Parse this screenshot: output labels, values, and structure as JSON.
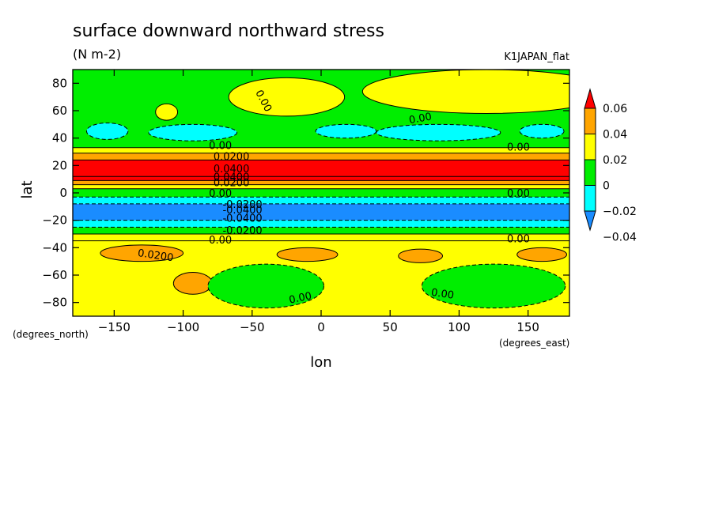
{
  "chart_data": {
    "type": "heatmap",
    "title": "surface downward northward stress",
    "units": "(N m-2)",
    "dataset": "K1JAPAN_flat",
    "xlabel": "lon",
    "ylabel": "lat",
    "x_units": "(degrees_east)",
    "y_units": "(degrees_north)",
    "xlim": [
      -180,
      180
    ],
    "ylim": [
      -90,
      90
    ],
    "x_ticks": [
      -150,
      -100,
      -50,
      0,
      50,
      100,
      150
    ],
    "x_tick_labels": [
      "−150",
      "−100",
      "−50",
      "0",
      "50",
      "100",
      "150"
    ],
    "y_ticks": [
      -80,
      -60,
      -40,
      -20,
      0,
      20,
      40,
      60,
      80
    ],
    "y_tick_labels": [
      "−80",
      "−60",
      "−40",
      "−20",
      "0",
      "20",
      "40",
      "60",
      "80"
    ],
    "zonal_bands": [
      {
        "lat_from": -90,
        "lat_to": -35,
        "value": 0.01
      },
      {
        "lat_from": -35,
        "lat_to": -30,
        "value": 0.01
      },
      {
        "lat_from": -30,
        "lat_to": -25,
        "value": -0.01
      },
      {
        "lat_from": -25,
        "lat_to": -20,
        "value": -0.03
      },
      {
        "lat_from": -20,
        "lat_to": -8,
        "value": -0.05
      },
      {
        "lat_from": -8,
        "lat_to": -3,
        "value": -0.03
      },
      {
        "lat_from": -3,
        "lat_to": 3,
        "value": -0.01
      },
      {
        "lat_from": 3,
        "lat_to": 6,
        "value": 0.01
      },
      {
        "lat_from": 6,
        "lat_to": 9,
        "value": 0.03
      },
      {
        "lat_from": 9,
        "lat_to": 12,
        "value": 0.05
      },
      {
        "lat_from": 12,
        "lat_to": 24,
        "value": 0.05
      },
      {
        "lat_from": 24,
        "lat_to": 29,
        "value": 0.03
      },
      {
        "lat_from": 29,
        "lat_to": 33,
        "value": 0.01
      },
      {
        "lat_from": 33,
        "lat_to": 90,
        "value": -0.01
      }
    ],
    "regions": [
      {
        "kind": "ellipse",
        "lon": -112,
        "lat": 59,
        "rlon": 8,
        "rlat": 6,
        "value": 0.01
      },
      {
        "kind": "ellipse",
        "lon": -25,
        "lat": 70,
        "rlon": 42,
        "rlat": 14,
        "value": 0.01
      },
      {
        "kind": "ellipse",
        "lon": 120,
        "lat": 74,
        "rlon": 90,
        "rlat": 16,
        "value": 0.01
      },
      {
        "kind": "ellipse",
        "lon": -155,
        "lat": 45,
        "rlon": 15,
        "rlat": 6,
        "value": -0.03
      },
      {
        "kind": "ellipse",
        "lon": -93,
        "lat": 44,
        "rlon": 32,
        "rlat": 6,
        "value": -0.03
      },
      {
        "kind": "ellipse",
        "lon": 18,
        "lat": 45,
        "rlon": 22,
        "rlat": 5,
        "value": -0.03
      },
      {
        "kind": "ellipse",
        "lon": 85,
        "lat": 44,
        "rlon": 45,
        "rlat": 6,
        "value": -0.03
      },
      {
        "kind": "ellipse",
        "lon": 160,
        "lat": 45,
        "rlon": 16,
        "rlat": 5,
        "value": -0.03
      },
      {
        "kind": "ellipse",
        "lon": -130,
        "lat": -44,
        "rlon": 30,
        "rlat": 6,
        "value": 0.03
      },
      {
        "kind": "ellipse",
        "lon": -10,
        "lat": -45,
        "rlon": 22,
        "rlat": 5,
        "value": 0.03
      },
      {
        "kind": "ellipse",
        "lon": 72,
        "lat": -46,
        "rlon": 16,
        "rlat": 5,
        "value": 0.03
      },
      {
        "kind": "ellipse",
        "lon": 160,
        "lat": -45,
        "rlon": 18,
        "rlat": 5,
        "value": 0.03
      },
      {
        "kind": "ellipse",
        "lon": -93,
        "lat": -66,
        "rlon": 14,
        "rlat": 8,
        "value": 0.03
      },
      {
        "kind": "ellipse",
        "lon": -40,
        "lat": -68,
        "rlon": 42,
        "rlat": 16,
        "value": -0.01
      },
      {
        "kind": "ellipse",
        "lon": 125,
        "lat": -68,
        "rlon": 52,
        "rlat": 16,
        "value": -0.01
      }
    ],
    "contour_labels": [
      {
        "text": "0.00",
        "lon": -42,
        "lat": 67,
        "rot": 62
      },
      {
        "text": "0.00",
        "lon": 72,
        "lat": 54,
        "rot": -10
      },
      {
        "text": "0.00",
        "lon": -73,
        "lat": 34
      },
      {
        "text": "0.00",
        "lon": 143,
        "lat": 33
      },
      {
        "text": "0.0200",
        "lon": -65,
        "lat": 26
      },
      {
        "text": "0.0400",
        "lon": -65,
        "lat": 17
      },
      {
        "text": "0.0400",
        "lon": -65,
        "lat": 11
      },
      {
        "text": "0.0200",
        "lon": -65,
        "lat": 7
      },
      {
        "text": "0.00",
        "lon": -73,
        "lat": -1
      },
      {
        "text": "0.00",
        "lon": 143,
        "lat": -1
      },
      {
        "text": "-0.0200",
        "lon": -57,
        "lat": -9
      },
      {
        "text": "-0.0400",
        "lon": -57,
        "lat": -13
      },
      {
        "text": "-0.0400",
        "lon": -57,
        "lat": -19
      },
      {
        "text": "-0.0200",
        "lon": -57,
        "lat": -28
      },
      {
        "text": "0.00",
        "lon": -73,
        "lat": -35
      },
      {
        "text": "0.00",
        "lon": 143,
        "lat": -34
      },
      {
        "text": "0.0200",
        "lon": -120,
        "lat": -46,
        "rot": 8
      },
      {
        "text": "0.00",
        "lon": -15,
        "lat": -77,
        "rot": -12
      },
      {
        "text": "0.00",
        "lon": 88,
        "lat": -74,
        "rot": 8
      }
    ],
    "colorbar": {
      "levels": [
        -0.06,
        -0.04,
        -0.02,
        0,
        0.02,
        0.04,
        0.06,
        0.08
      ],
      "tick_labels": [
        "0.06",
        "0.04",
        "0.02",
        "0",
        "−0.02",
        "−0.04"
      ],
      "tick_values": [
        0.06,
        0.04,
        0.02,
        0,
        -0.02,
        -0.04
      ],
      "colors": [
        "#1a8cff",
        "#00ffff",
        "#00ee00",
        "#ffff00",
        "#ffa500",
        "#ff0000"
      ]
    }
  }
}
